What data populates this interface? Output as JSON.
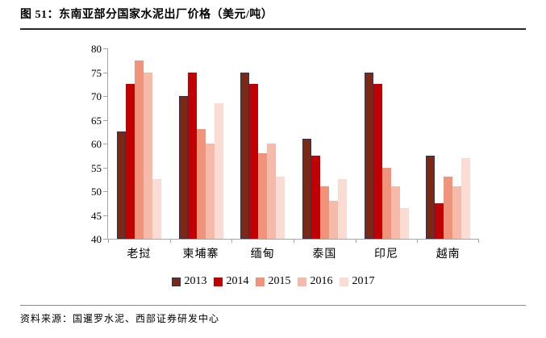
{
  "header": {
    "title": "图 51：东南亚部分国家水泥出厂价格（美元/吨）"
  },
  "footer": {
    "source": "资料来源：国暹罗水泥、西部证券研发中心"
  },
  "chart_data": {
    "type": "bar",
    "title": "东南亚部分国家水泥出厂价格（美元/吨）",
    "categories": [
      "老挝",
      "柬埔寨",
      "缅甸",
      "泰国",
      "印尼",
      "越南"
    ],
    "series": [
      {
        "name": "2013",
        "color": "#7b2815",
        "border_color": "#203864",
        "values": [
          62.5,
          70,
          75,
          61,
          75,
          57.5
        ]
      },
      {
        "name": "2014",
        "color": "#c00000",
        "values": [
          72.5,
          75,
          72.5,
          57.5,
          72.5,
          47.5
        ]
      },
      {
        "name": "2015",
        "color": "#f0937b",
        "values": [
          77.5,
          63,
          58,
          51,
          55,
          53
        ]
      },
      {
        "name": "2016",
        "color": "#f6baaa",
        "values": [
          75,
          60,
          60,
          48,
          51,
          51
        ]
      },
      {
        "name": "2017",
        "color": "#fadcd4",
        "values": [
          52.5,
          68.5,
          53,
          52.5,
          46.5,
          57
        ]
      }
    ],
    "ylabel": "",
    "xlabel": "",
    "ylim": [
      40,
      80
    ],
    "ytick_step": 5,
    "grid": false,
    "legend_position": "bottom",
    "axis_color": "#a6a6a6"
  }
}
